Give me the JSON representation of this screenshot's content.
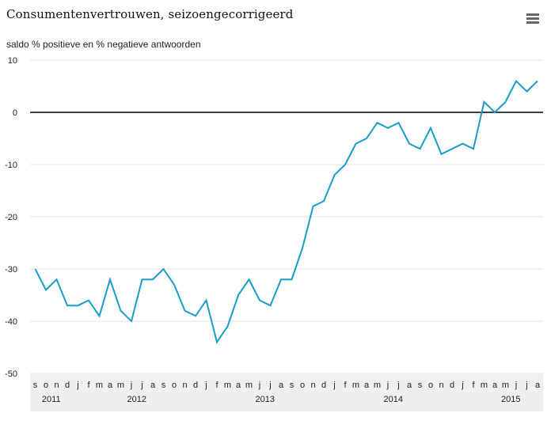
{
  "title": "Consumentenvertrouwen, seizoengecorrigeerd",
  "subtitle": "saldo % positieve en % negatieve antwoorden",
  "menu_icon": "hamburger-menu-icon",
  "colors": {
    "line": "#1a9cc9",
    "zero_line": "#000000",
    "grid": "#e3e3e3",
    "axis_band": "#efefef"
  },
  "chart_data": {
    "type": "line",
    "title": "Consumentenvertrouwen, seizoengecorrigeerd",
    "ylabel": "saldo % positieve en % negatieve antwoorden",
    "xlabel": "",
    "ylim": [
      -50,
      10
    ],
    "yticks": [
      10,
      0,
      -10,
      -20,
      -30,
      -40,
      -50
    ],
    "grid": true,
    "legend": "none",
    "month_labels": [
      "s",
      "o",
      "n",
      "d",
      "j",
      "f",
      "m",
      "a",
      "m",
      "j",
      "j",
      "a",
      "s",
      "o",
      "n",
      "d",
      "j",
      "f",
      "m",
      "a",
      "m",
      "j",
      "j",
      "a",
      "s",
      "o",
      "n",
      "d",
      "j",
      "f",
      "m",
      "a",
      "m",
      "j",
      "j",
      "a",
      "s",
      "o",
      "n",
      "d",
      "j",
      "f",
      "m",
      "a",
      "m",
      "j",
      "j",
      "a"
    ],
    "year_labels": [
      {
        "label": "2011",
        "index": 1.5
      },
      {
        "label": "2012",
        "index": 9.5
      },
      {
        "label": "2013",
        "index": 21.5
      },
      {
        "label": "2014",
        "index": 33.5
      },
      {
        "label": "2015",
        "index": 44.5
      }
    ],
    "series": [
      {
        "values": [
          -30,
          -34,
          -32,
          -37,
          -37,
          -36,
          -39,
          -32,
          -38,
          -40,
          -32,
          -32,
          -30,
          -33,
          -38,
          -39,
          -36,
          -44,
          -41,
          -35,
          -32,
          -36,
          -37,
          -32,
          -32,
          -26,
          -18,
          -17,
          -12,
          -10,
          -6,
          -5,
          -2,
          -3,
          -2,
          -6,
          -7,
          -3,
          -8,
          -7,
          -6,
          -7,
          2,
          0,
          2,
          6,
          4,
          6
        ]
      }
    ]
  }
}
